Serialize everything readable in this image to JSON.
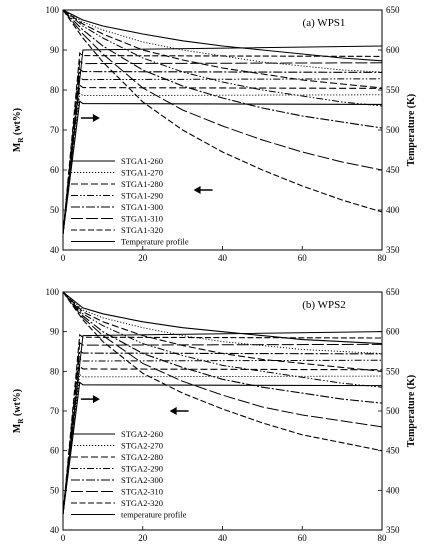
{
  "chart_data": [
    {
      "type": "line",
      "title": "(a) WPS1",
      "xlabel": "",
      "ylabel": "M_R (wt%)",
      "ylabel_right": "Temperature (K)",
      "xlim": [
        0,
        80
      ],
      "ylim": [
        40,
        100
      ],
      "ylim_right": [
        350,
        650
      ],
      "x_ticks": [
        "0",
        "20",
        "40",
        "60",
        "80"
      ],
      "y_ticks": [
        "40",
        "50",
        "60",
        "70",
        "80",
        "90",
        "100"
      ],
      "y_right_ticks": [
        "350",
        "400",
        "450",
        "500",
        "550",
        "600",
        "650"
      ],
      "legend_position": "bottom-left",
      "series": [
        {
          "name": "STGA1-260",
          "axis": "left",
          "x": [
            0,
            5,
            10,
            20,
            30,
            40,
            50,
            60,
            70,
            80
          ],
          "values": [
            100,
            97.5,
            96,
            94,
            92.3,
            91,
            90,
            89,
            88,
            87.3
          ],
          "curve": "mass"
        },
        {
          "name": "STGA1-270",
          "axis": "left",
          "x": [
            0,
            5,
            10,
            20,
            30,
            40,
            50,
            60,
            70,
            80
          ],
          "values": [
            100,
            97,
            95,
            92,
            90,
            88.5,
            87,
            86,
            85,
            84.5
          ],
          "curve": "mass"
        },
        {
          "name": "STGA1-280",
          "axis": "left",
          "x": [
            0,
            5,
            10,
            20,
            30,
            40,
            50,
            60,
            70,
            80
          ],
          "values": [
            100,
            96.5,
            94,
            90,
            87.5,
            85.5,
            84,
            82.5,
            81.5,
            80.5
          ],
          "curve": "mass"
        },
        {
          "name": "STGA1-290",
          "axis": "left",
          "x": [
            0,
            5,
            10,
            20,
            30,
            40,
            50,
            60,
            70,
            80
          ],
          "values": [
            100,
            96,
            93,
            88,
            84.5,
            82,
            80,
            78.5,
            77,
            76
          ],
          "curve": "mass"
        },
        {
          "name": "STGA1-300",
          "axis": "left",
          "x": [
            0,
            5,
            10,
            20,
            30,
            40,
            50,
            60,
            70,
            80
          ],
          "values": [
            100,
            95,
            91,
            85,
            81,
            78,
            75.5,
            73.5,
            72,
            70.5
          ],
          "curve": "mass"
        },
        {
          "name": "STGA1-310",
          "axis": "left",
          "x": [
            0,
            5,
            10,
            20,
            30,
            40,
            50,
            60,
            70,
            80
          ],
          "values": [
            100,
            94,
            89,
            80.5,
            75,
            71,
            67.5,
            64.5,
            62,
            60
          ],
          "curve": "mass"
        },
        {
          "name": "STGA1-320",
          "axis": "left",
          "x": [
            0,
            5,
            10,
            20,
            30,
            40,
            50,
            60,
            70,
            80
          ],
          "values": [
            100,
            93,
            87,
            77,
            70,
            64.5,
            60,
            56,
            52.5,
            49.5
          ],
          "curve": "mass"
        },
        {
          "name": "Temperature profile",
          "axis": "right",
          "x": [
            0,
            5,
            80
          ],
          "values": [
            370,
            600,
            605
          ],
          "curve": "temperature"
        }
      ],
      "temperature_plateaus_K": [
        533,
        543,
        553,
        563,
        573,
        583,
        593
      ],
      "annotations": [
        {
          "type": "arrow",
          "direction": "right",
          "x": 8,
          "y": 73
        },
        {
          "type": "arrow",
          "direction": "left",
          "x": 34,
          "y": 55
        }
      ]
    },
    {
      "type": "line",
      "title": "(b) WPS2",
      "xlabel": "",
      "ylabel": "M_R (wt%)",
      "ylabel_right": "Temperature (K)",
      "xlim": [
        0,
        80
      ],
      "ylim": [
        40,
        100
      ],
      "ylim_right": [
        350,
        650
      ],
      "x_ticks": [
        "0",
        "20",
        "40",
        "60",
        "80"
      ],
      "y_ticks": [
        "40",
        "50",
        "60",
        "70",
        "80",
        "90",
        "100"
      ],
      "y_right_ticks": [
        "350",
        "400",
        "450",
        "500",
        "550",
        "600",
        "650"
      ],
      "legend_position": "bottom-left",
      "series": [
        {
          "name": "STGA2-260",
          "axis": "left",
          "x": [
            0,
            5,
            10,
            20,
            30,
            40,
            50,
            60,
            70,
            80
          ],
          "values": [
            100,
            96,
            94.5,
            92.5,
            91,
            90,
            89,
            88,
            87.5,
            87
          ],
          "curve": "mass"
        },
        {
          "name": "STGA2-270",
          "axis": "left",
          "x": [
            0,
            5,
            10,
            20,
            30,
            40,
            50,
            60,
            70,
            80
          ],
          "values": [
            100,
            95.5,
            93.5,
            91,
            89,
            87.5,
            86.5,
            85.5,
            85,
            84.5
          ],
          "curve": "mass"
        },
        {
          "name": "STGA2-280",
          "axis": "left",
          "x": [
            0,
            5,
            10,
            20,
            30,
            40,
            50,
            60,
            70,
            80
          ],
          "values": [
            100,
            95,
            92.5,
            89,
            86.5,
            84.5,
            83,
            82,
            81,
            80
          ],
          "curve": "mass"
        },
        {
          "name": "STGA2-290",
          "axis": "left",
          "x": [
            0,
            5,
            10,
            20,
            30,
            40,
            50,
            60,
            70,
            80
          ],
          "values": [
            100,
            94.5,
            91.5,
            87,
            84,
            81.5,
            80,
            78.5,
            77,
            76
          ],
          "curve": "mass"
        },
        {
          "name": "STGA2-300",
          "axis": "left",
          "x": [
            0,
            5,
            10,
            20,
            30,
            40,
            50,
            60,
            70,
            80
          ],
          "values": [
            100,
            94,
            90,
            84.5,
            81,
            78,
            76,
            74.5,
            73,
            72
          ],
          "curve": "mass"
        },
        {
          "name": "STGA2-310",
          "axis": "left",
          "x": [
            0,
            5,
            10,
            20,
            30,
            40,
            50,
            60,
            70,
            80
          ],
          "values": [
            100,
            93.5,
            89,
            82,
            77.5,
            74,
            71,
            69,
            67.5,
            66
          ],
          "curve": "mass"
        },
        {
          "name": "STGA2-320",
          "axis": "left",
          "x": [
            0,
            5,
            10,
            20,
            30,
            40,
            50,
            60,
            70,
            80
          ],
          "values": [
            100,
            93,
            87.5,
            79.5,
            74.5,
            70.5,
            67,
            64,
            62,
            60
          ],
          "curve": "mass"
        },
        {
          "name": "temperature profile",
          "axis": "right",
          "x": [
            0,
            5,
            80
          ],
          "values": [
            370,
            595,
            600
          ],
          "curve": "temperature"
        }
      ],
      "temperature_plateaus_K": [
        533,
        543,
        553,
        563,
        573,
        583,
        593
      ],
      "annotations": [
        {
          "type": "arrow",
          "direction": "right",
          "x": 8,
          "y": 73
        },
        {
          "type": "arrow",
          "direction": "left",
          "x": 28,
          "y": 70
        }
      ]
    }
  ]
}
